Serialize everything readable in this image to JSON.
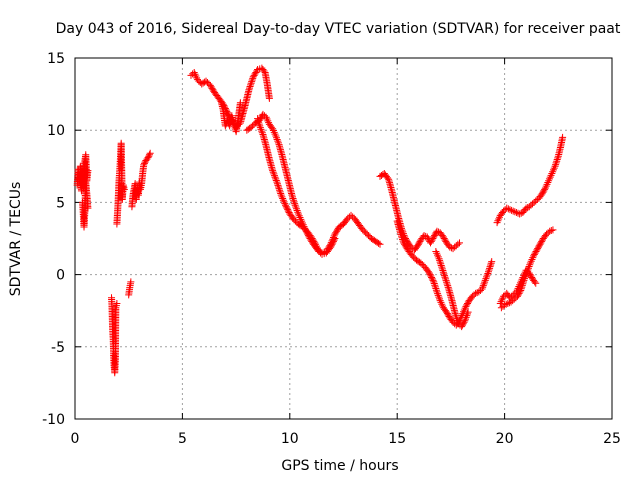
{
  "chart_data": {
    "type": "scatter",
    "title": "Day 043 of 2016, Sidereal Day-to-day VTEC variation (SDTVAR) for receiver paat",
    "xlabel": "GPS time / hours",
    "ylabel": "SDTVAR / TECUs",
    "xlim": [
      0,
      25
    ],
    "ylim": [
      -10,
      15
    ],
    "xticks": [
      0,
      5,
      10,
      15,
      20,
      25
    ],
    "yticks": [
      -10,
      -5,
      0,
      5,
      10,
      15
    ],
    "xtick_labels": [
      "0",
      "5",
      "10",
      "15",
      "20",
      "25"
    ],
    "ytick_labels": [
      "-10",
      "-5",
      "0",
      "5",
      "10",
      "15"
    ],
    "grid": true,
    "marker": "plus",
    "color": "#ff0000",
    "series": [
      {
        "name": "SDTVAR",
        "tracks": [
          [
            [
              0.1,
              6.2
            ],
            [
              0.15,
              7.3
            ],
            [
              0.2,
              6.5
            ],
            [
              0.25,
              7.5
            ],
            [
              0.3,
              5.8
            ],
            [
              0.35,
              7.0
            ],
            [
              0.4,
              6.0
            ],
            [
              0.45,
              7.8
            ],
            [
              0.5,
              8.3
            ],
            [
              0.55,
              6.5
            ],
            [
              0.6,
              7.2
            ]
          ],
          [
            [
              0.35,
              5.0
            ],
            [
              0.38,
              4.4
            ],
            [
              0.4,
              3.8
            ],
            [
              0.42,
              3.3
            ],
            [
              0.45,
              4.1
            ],
            [
              0.5,
              6.4
            ],
            [
              0.55,
              5.6
            ],
            [
              0.6,
              4.6
            ]
          ],
          [
            [
              1.7,
              -1.6
            ],
            [
              1.72,
              -2.1
            ],
            [
              1.75,
              -3.7
            ],
            [
              1.78,
              -4.5
            ],
            [
              1.8,
              -5.6
            ],
            [
              1.82,
              -6.3
            ],
            [
              1.85,
              -6.8
            ],
            [
              1.88,
              -5.9
            ],
            [
              1.9,
              -2.3
            ],
            [
              1.95,
              -2.0
            ]
          ],
          [
            [
              1.95,
              3.5
            ],
            [
              2.0,
              4.8
            ],
            [
              2.05,
              6.5
            ],
            [
              2.1,
              7.6
            ],
            [
              2.15,
              9.1
            ],
            [
              2.2,
              5.2
            ],
            [
              2.25,
              6.2
            ],
            [
              2.3,
              5.9
            ]
          ],
          [
            [
              2.5,
              -1.4
            ],
            [
              2.55,
              -0.9
            ],
            [
              2.6,
              -0.5
            ]
          ],
          [
            [
              2.65,
              4.7
            ],
            [
              2.7,
              5.5
            ],
            [
              2.8,
              6.3
            ],
            [
              2.85,
              5.2
            ],
            [
              2.9,
              6.0
            ],
            [
              2.95,
              5.5
            ],
            [
              3.0,
              6.4
            ],
            [
              3.05,
              5.9
            ],
            [
              3.1,
              6.3
            ],
            [
              3.15,
              7.0
            ],
            [
              3.2,
              7.6
            ],
            [
              3.3,
              7.9
            ],
            [
              3.4,
              8.1
            ],
            [
              3.5,
              8.4
            ]
          ],
          [
            [
              5.4,
              13.8
            ],
            [
              5.55,
              14.0
            ],
            [
              5.7,
              13.5
            ],
            [
              5.9,
              13.2
            ],
            [
              6.1,
              13.4
            ],
            [
              6.3,
              13.1
            ],
            [
              6.5,
              12.6
            ],
            [
              6.7,
              12.2
            ],
            [
              6.9,
              11.8
            ],
            [
              7.1,
              11.2
            ],
            [
              7.3,
              10.6
            ],
            [
              7.5,
              10.2
            ],
            [
              7.7,
              10.5
            ],
            [
              7.9,
              11.6
            ],
            [
              8.1,
              12.8
            ],
            [
              8.3,
              13.7
            ],
            [
              8.5,
              14.2
            ],
            [
              8.7,
              14.3
            ],
            [
              8.85,
              14.0
            ],
            [
              8.95,
              13.2
            ],
            [
              9.05,
              12.2
            ]
          ],
          [
            [
              6.8,
              12.0
            ],
            [
              6.9,
              11.4
            ],
            [
              6.95,
              10.8
            ],
            [
              7.0,
              10.3
            ],
            [
              7.1,
              10.7
            ],
            [
              7.2,
              10.3
            ],
            [
              7.3,
              11.0
            ],
            [
              7.4,
              10.4
            ],
            [
              7.5,
              9.9
            ],
            [
              7.6,
              10.8
            ],
            [
              7.7,
              11.9
            ]
          ],
          [
            [
              8.0,
              10.0
            ],
            [
              8.2,
              10.2
            ],
            [
              8.4,
              10.5
            ],
            [
              8.6,
              10.7
            ],
            [
              8.75,
              11.1
            ],
            [
              8.9,
              10.9
            ],
            [
              9.05,
              10.4
            ],
            [
              9.2,
              10.1
            ],
            [
              9.35,
              9.6
            ],
            [
              9.5,
              9.0
            ],
            [
              9.65,
              8.2
            ],
            [
              9.8,
              7.3
            ],
            [
              9.95,
              6.4
            ],
            [
              10.1,
              5.5
            ],
            [
              10.25,
              4.8
            ],
            [
              10.4,
              4.2
            ],
            [
              10.55,
              3.7
            ],
            [
              10.7,
              3.2
            ],
            [
              10.9,
              2.6
            ],
            [
              11.1,
              2.1
            ],
            [
              11.3,
              1.7
            ],
            [
              11.5,
              1.5
            ],
            [
              11.7,
              1.6
            ],
            [
              11.9,
              2.1
            ],
            [
              12.1,
              2.8
            ],
            [
              12.3,
              3.3
            ],
            [
              12.5,
              3.5
            ],
            [
              12.7,
              3.9
            ],
            [
              12.85,
              4.1
            ],
            [
              13.0,
              3.9
            ],
            [
              13.2,
              3.5
            ],
            [
              13.4,
              3.1
            ],
            [
              13.6,
              2.8
            ],
            [
              13.8,
              2.5
            ],
            [
              14.0,
              2.3
            ],
            [
              14.2,
              2.1
            ]
          ],
          [
            [
              8.5,
              10.8
            ],
            [
              8.6,
              10.3
            ],
            [
              8.75,
              9.7
            ],
            [
              8.9,
              8.9
            ],
            [
              9.05,
              8.0
            ],
            [
              9.2,
              7.2
            ],
            [
              9.4,
              6.4
            ],
            [
              9.6,
              5.5
            ],
            [
              9.8,
              4.8
            ],
            [
              10.0,
              4.2
            ],
            [
              10.2,
              3.8
            ],
            [
              10.4,
              3.5
            ],
            [
              10.6,
              3.3
            ],
            [
              10.8,
              3.0
            ],
            [
              11.0,
              2.6
            ],
            [
              11.2,
              2.1
            ],
            [
              11.35,
              1.6
            ],
            [
              11.5,
              1.4
            ],
            [
              11.7,
              1.5
            ],
            [
              11.9,
              1.9
            ],
            [
              12.1,
              2.5
            ]
          ],
          [
            [
              14.2,
              6.8
            ],
            [
              14.4,
              7.0
            ],
            [
              14.6,
              6.6
            ],
            [
              14.75,
              5.8
            ],
            [
              14.9,
              4.9
            ],
            [
              15.05,
              4.0
            ],
            [
              15.2,
              3.2
            ],
            [
              15.35,
              2.6
            ],
            [
              15.5,
              2.2
            ],
            [
              15.65,
              1.9
            ],
            [
              15.8,
              1.7
            ],
            [
              15.95,
              2.0
            ],
            [
              16.1,
              2.4
            ],
            [
              16.25,
              2.7
            ],
            [
              16.4,
              2.6
            ],
            [
              16.55,
              2.2
            ],
            [
              16.7,
              2.6
            ],
            [
              16.85,
              3.0
            ],
            [
              17.0,
              2.9
            ],
            [
              17.15,
              2.6
            ],
            [
              17.3,
              2.2
            ],
            [
              17.45,
              1.9
            ],
            [
              17.6,
              1.8
            ],
            [
              17.75,
              2.0
            ],
            [
              17.9,
              2.2
            ]
          ],
          [
            [
              15.0,
              3.7
            ],
            [
              15.15,
              2.9
            ],
            [
              15.3,
              2.2
            ],
            [
              15.5,
              1.7
            ],
            [
              15.7,
              1.3
            ],
            [
              15.9,
              1.0
            ],
            [
              16.1,
              0.8
            ],
            [
              16.3,
              0.5
            ],
            [
              16.5,
              0.1
            ],
            [
              16.7,
              -0.5
            ],
            [
              16.85,
              -1.2
            ],
            [
              17.0,
              -1.8
            ],
            [
              17.15,
              -2.3
            ],
            [
              17.3,
              -2.6
            ],
            [
              17.45,
              -3.0
            ],
            [
              17.6,
              -3.3
            ],
            [
              17.75,
              -3.5
            ],
            [
              17.9,
              -3.2
            ],
            [
              18.05,
              -2.7
            ],
            [
              18.2,
              -2.2
            ],
            [
              18.35,
              -1.8
            ],
            [
              18.5,
              -1.5
            ],
            [
              18.65,
              -1.3
            ],
            [
              18.8,
              -1.2
            ],
            [
              18.95,
              -1.0
            ],
            [
              19.1,
              -0.4
            ],
            [
              19.25,
              0.2
            ],
            [
              19.4,
              0.9
            ]
          ],
          [
            [
              16.8,
              1.6
            ],
            [
              16.95,
              1.1
            ],
            [
              17.1,
              0.4
            ],
            [
              17.25,
              -0.3
            ],
            [
              17.4,
              -1.0
            ],
            [
              17.55,
              -1.8
            ],
            [
              17.7,
              -2.7
            ],
            [
              17.85,
              -3.4
            ],
            [
              18.0,
              -3.6
            ],
            [
              18.15,
              -3.2
            ],
            [
              18.3,
              -2.6
            ]
          ],
          [
            [
              19.65,
              3.6
            ],
            [
              19.8,
              4.1
            ],
            [
              19.95,
              4.4
            ],
            [
              20.1,
              4.6
            ],
            [
              20.25,
              4.5
            ],
            [
              20.4,
              4.4
            ],
            [
              20.55,
              4.3
            ],
            [
              20.7,
              4.2
            ],
            [
              20.85,
              4.3
            ],
            [
              21.0,
              4.6
            ],
            [
              21.15,
              4.7
            ],
            [
              21.3,
              4.9
            ],
            [
              21.45,
              5.1
            ],
            [
              21.6,
              5.3
            ],
            [
              21.75,
              5.6
            ],
            [
              21.9,
              6.0
            ],
            [
              22.05,
              6.5
            ],
            [
              22.2,
              7.0
            ],
            [
              22.35,
              7.5
            ],
            [
              22.5,
              8.2
            ],
            [
              22.6,
              8.8
            ],
            [
              22.7,
              9.5
            ]
          ],
          [
            [
              19.8,
              -2.0
            ],
            [
              19.95,
              -1.5
            ],
            [
              20.1,
              -1.3
            ],
            [
              20.25,
              -1.6
            ],
            [
              20.4,
              -1.4
            ],
            [
              20.55,
              -1.2
            ],
            [
              20.7,
              -0.7
            ],
            [
              20.85,
              -0.2
            ],
            [
              21.0,
              0.3
            ],
            [
              21.15,
              0.1
            ],
            [
              21.3,
              -0.3
            ],
            [
              21.45,
              -0.6
            ]
          ],
          [
            [
              19.85,
              -2.3
            ],
            [
              20.0,
              -2.1
            ],
            [
              20.15,
              -2.0
            ],
            [
              20.3,
              -1.9
            ],
            [
              20.45,
              -1.7
            ],
            [
              20.6,
              -1.5
            ],
            [
              20.75,
              -1.1
            ],
            [
              20.9,
              -0.4
            ],
            [
              21.05,
              0.2
            ],
            [
              21.2,
              0.8
            ],
            [
              21.35,
              1.3
            ],
            [
              21.5,
              1.7
            ],
            [
              21.65,
              2.1
            ],
            [
              21.8,
              2.5
            ],
            [
              21.95,
              2.8
            ],
            [
              22.1,
              3.0
            ],
            [
              22.25,
              3.1
            ]
          ]
        ]
      }
    ]
  }
}
